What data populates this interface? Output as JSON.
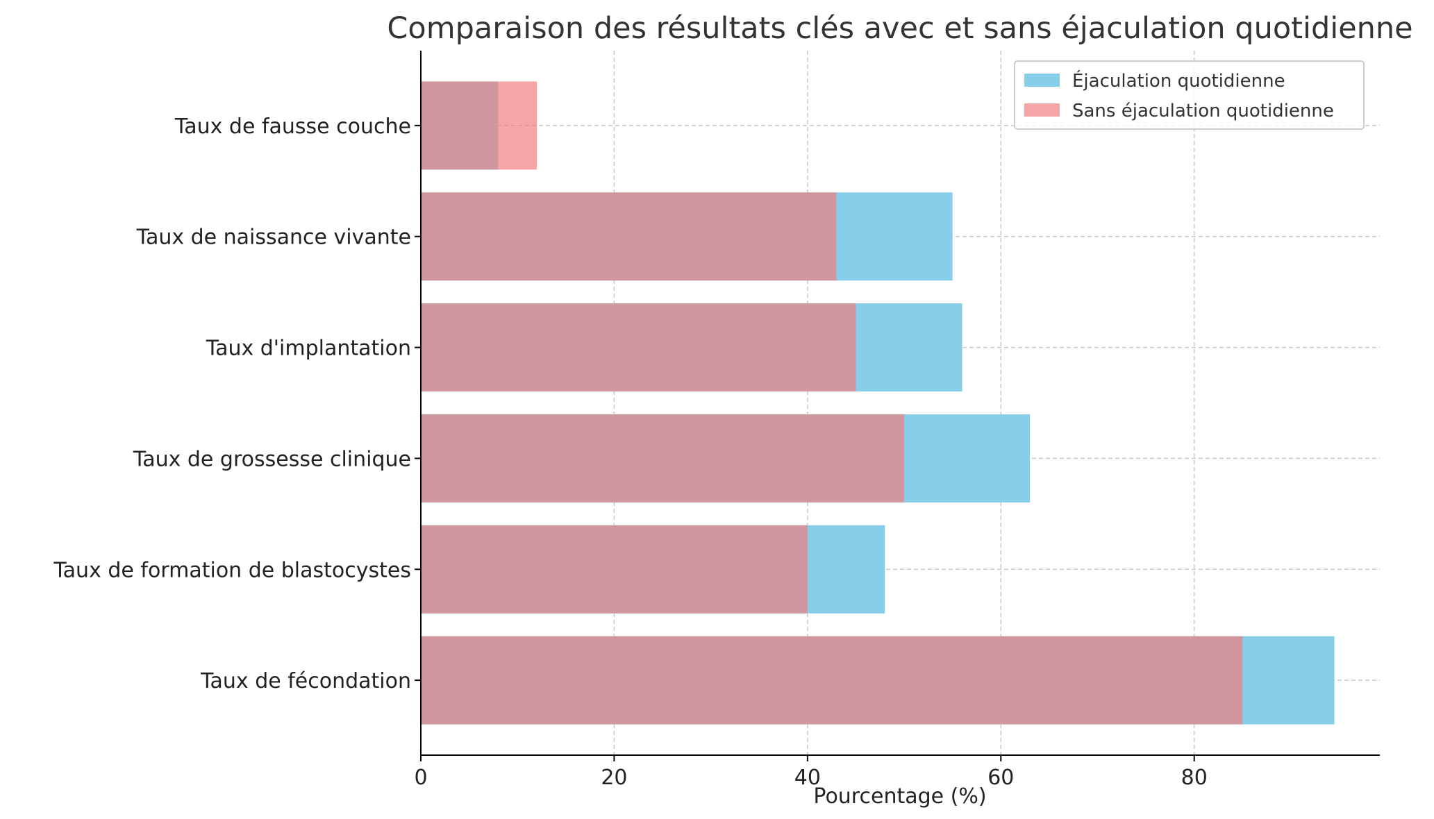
{
  "chart_data": {
    "type": "bar",
    "orientation": "horizontal",
    "overlay": true,
    "title": "Comparaison des résultats clés avec et sans éjaculation quotidienne",
    "xlabel": "Pourcentage (%)",
    "ylabel": "",
    "categories": [
      "Taux de fécondation",
      "Taux de formation de blastocystes",
      "Taux de grossesse clinique",
      "Taux d'implantation",
      "Taux de naissance vivante",
      "Taux de fausse couche"
    ],
    "series": [
      {
        "name": "Éjaculation quotidienne",
        "values": [
          94.5,
          48,
          63,
          56,
          55,
          8
        ],
        "color": "#87CEEB"
      },
      {
        "name": "Sans éjaculation quotidienne",
        "values": [
          85,
          40,
          50,
          45,
          43,
          12
        ],
        "color": "#F08080"
      }
    ],
    "xlim": [
      0,
      99.2
    ],
    "xticks": [
      "0",
      "20",
      "40",
      "60",
      "80"
    ],
    "xtick_values": [
      0,
      20,
      40,
      60,
      80
    ],
    "grid": true,
    "grid_style": "dashed",
    "legend_position": "top-right",
    "overlap_color": "#CF959E"
  }
}
